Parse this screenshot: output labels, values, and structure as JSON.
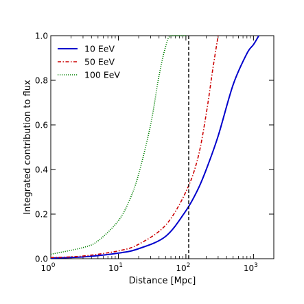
{
  "chart_data": {
    "type": "line",
    "xscale": "log",
    "xlim": [
      1,
      2000
    ],
    "ylim": [
      0.0,
      1.0
    ],
    "xlabel": "Distance [Mpc]",
    "ylabel": "Integrated contribution to flux",
    "x_ticks": [
      {
        "value": 1,
        "base": "10",
        "exp": "0"
      },
      {
        "value": 10,
        "base": "10",
        "exp": "1"
      },
      {
        "value": 100,
        "base": "10",
        "exp": "2"
      },
      {
        "value": 1000,
        "base": "10",
        "exp": "3"
      }
    ],
    "y_ticks": [
      "0.0",
      "0.2",
      "0.4",
      "0.6",
      "0.8",
      "1.0"
    ],
    "y_tick_values": [
      0.0,
      0.2,
      0.4,
      0.6,
      0.8,
      1.0
    ],
    "legend_position": "top-left",
    "vline": {
      "x": 110,
      "style": "dashed",
      "color": "#000000"
    },
    "series": [
      {
        "name": "10 EeV",
        "color": "#0000cc",
        "style": "solid",
        "points": [
          [
            1,
            0.003
          ],
          [
            3,
            0.008
          ],
          [
            10,
            0.025
          ],
          [
            20,
            0.045
          ],
          [
            50,
            0.1
          ],
          [
            100,
            0.215
          ],
          [
            150,
            0.31
          ],
          [
            200,
            0.4
          ],
          [
            300,
            0.55
          ],
          [
            500,
            0.78
          ],
          [
            800,
            0.92
          ],
          [
            1000,
            0.96
          ],
          [
            1200,
            1.0
          ]
        ]
      },
      {
        "name": "50 EeV",
        "color": "#cc0000",
        "style": "dashdot",
        "points": [
          [
            1,
            0.005
          ],
          [
            3,
            0.012
          ],
          [
            10,
            0.035
          ],
          [
            20,
            0.065
          ],
          [
            50,
            0.15
          ],
          [
            100,
            0.3
          ],
          [
            150,
            0.45
          ],
          [
            200,
            0.65
          ],
          [
            250,
            0.85
          ],
          [
            300,
            1.0
          ]
        ]
      },
      {
        "name": "100 EeV",
        "color": "#008000",
        "style": "dotted",
        "points": [
          [
            1,
            0.02
          ],
          [
            3,
            0.05
          ],
          [
            5,
            0.08
          ],
          [
            10,
            0.17
          ],
          [
            15,
            0.27
          ],
          [
            20,
            0.38
          ],
          [
            30,
            0.6
          ],
          [
            40,
            0.82
          ],
          [
            50,
            0.95
          ],
          [
            60,
            1.0
          ],
          [
            100,
            1.0
          ]
        ]
      }
    ]
  }
}
